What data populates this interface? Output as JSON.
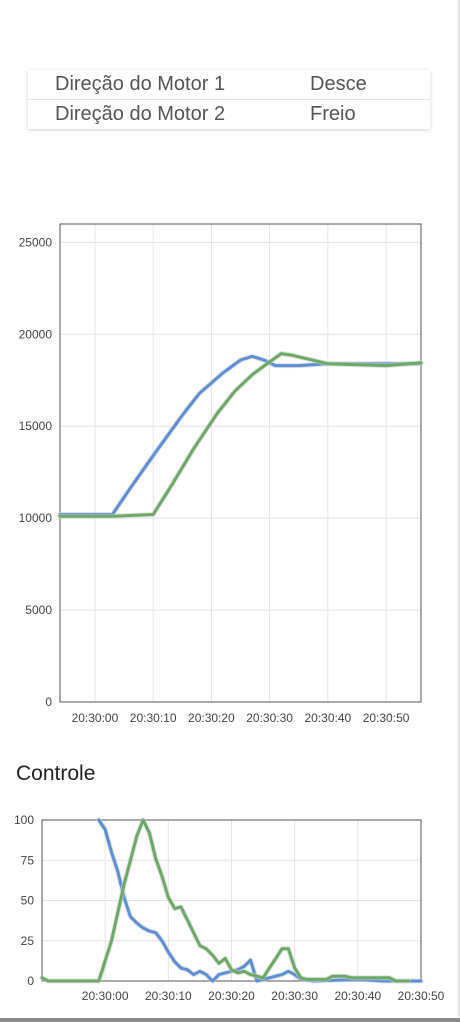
{
  "status_table": {
    "rows": [
      {
        "label": "Direção do Motor 1",
        "value": "Desce"
      },
      {
        "label": "Direção do Motor 2",
        "value": "Freio"
      }
    ]
  },
  "controle_title": "Controle",
  "colors": {
    "blue": "#5b8fd6",
    "green": "#6aaa64"
  },
  "chart_data": [
    {
      "type": "line",
      "title": "",
      "ylim": [
        0,
        26000
      ],
      "yticks": [
        0,
        5000,
        10000,
        15000,
        20000,
        25000
      ],
      "ytick_labels": [
        "0",
        "5000",
        "10000",
        "15000",
        "20000",
        "25000"
      ],
      "xlim": [
        -6,
        56
      ],
      "xticks": [
        0,
        10,
        20,
        30,
        40,
        50
      ],
      "xtick_labels": [
        "20:30:00",
        "20:30:10",
        "20:30:20",
        "20:30:30",
        "20:30:40",
        "20:30:50"
      ],
      "grid": true,
      "series": [
        {
          "color": "#5b8fd6",
          "points": [
            [
              -6,
              10200
            ],
            [
              3,
              10200
            ],
            [
              6,
              11600
            ],
            [
              10,
              13400
            ],
            [
              15,
              15600
            ],
            [
              18,
              16800
            ],
            [
              22,
              17900
            ],
            [
              25,
              18600
            ],
            [
              27,
              18800
            ],
            [
              29,
              18600
            ],
            [
              31,
              18300
            ],
            [
              35,
              18300
            ],
            [
              40,
              18400
            ],
            [
              50,
              18400
            ],
            [
              56,
              18400
            ]
          ]
        },
        {
          "color": "#6aaa64",
          "points": [
            [
              -6,
              10100
            ],
            [
              3,
              10100
            ],
            [
              10,
              10200
            ],
            [
              13,
              11700
            ],
            [
              17,
              13800
            ],
            [
              21,
              15700
            ],
            [
              24,
              16900
            ],
            [
              27,
              17800
            ],
            [
              30,
              18500
            ],
            [
              32,
              18950
            ],
            [
              34,
              18850
            ],
            [
              40,
              18400
            ],
            [
              50,
              18300
            ],
            [
              56,
              18450
            ]
          ]
        }
      ]
    },
    {
      "type": "line",
      "title": "Controle",
      "ylim": [
        0,
        100
      ],
      "yticks": [
        0,
        25,
        50,
        75,
        100
      ],
      "ytick_labels": [
        "0",
        "25",
        "50",
        "75",
        "100"
      ],
      "xlim": [
        -10,
        50
      ],
      "xticks": [
        0,
        10,
        20,
        30,
        40,
        50
      ],
      "xtick_labels": [
        "20:30:00",
        "20:30:10",
        "20:30:20",
        "20:30:30",
        "20:30:40",
        "20:30:50"
      ],
      "grid": true,
      "series": [
        {
          "color": "#5b8fd6",
          "points": [
            [
              -1,
              100
            ],
            [
              0,
              94
            ],
            [
              1,
              80
            ],
            [
              2,
              68
            ],
            [
              3,
              52
            ],
            [
              4,
              40
            ],
            [
              5,
              36
            ],
            [
              6,
              33
            ],
            [
              7,
              31
            ],
            [
              8,
              30
            ],
            [
              9,
              25
            ],
            [
              10,
              18
            ],
            [
              11,
              12
            ],
            [
              12,
              8
            ],
            [
              13,
              7
            ],
            [
              14,
              4
            ],
            [
              15,
              6
            ],
            [
              16,
              4
            ],
            [
              17,
              0
            ],
            [
              18,
              4
            ],
            [
              19,
              5
            ],
            [
              20,
              6
            ],
            [
              21,
              7
            ],
            [
              22,
              9
            ],
            [
              23,
              13
            ],
            [
              24,
              0
            ],
            [
              26,
              2
            ],
            [
              28,
              4
            ],
            [
              29,
              6
            ],
            [
              30,
              4
            ],
            [
              31,
              1
            ],
            [
              33,
              0
            ],
            [
              40,
              1
            ],
            [
              44,
              0
            ],
            [
              50,
              0
            ]
          ]
        },
        {
          "color": "#6aaa64",
          "points": [
            [
              -10,
              2
            ],
            [
              -9,
              0
            ],
            [
              -1,
              0
            ],
            [
              1,
              25
            ],
            [
              3,
              60
            ],
            [
              5,
              90
            ],
            [
              6,
              100
            ],
            [
              7,
              92
            ],
            [
              8,
              76
            ],
            [
              9,
              65
            ],
            [
              10,
              52
            ],
            [
              11,
              45
            ],
            [
              12,
              46
            ],
            [
              13,
              38
            ],
            [
              14,
              30
            ],
            [
              15,
              22
            ],
            [
              16,
              20
            ],
            [
              17,
              16
            ],
            [
              18,
              11
            ],
            [
              19,
              14
            ],
            [
              20,
              7
            ],
            [
              21,
              5
            ],
            [
              22,
              6
            ],
            [
              23,
              4
            ],
            [
              24,
              3
            ],
            [
              25,
              2
            ],
            [
              26,
              8
            ],
            [
              27,
              14
            ],
            [
              28,
              20
            ],
            [
              29,
              20
            ],
            [
              30,
              8
            ],
            [
              31,
              2
            ],
            [
              32,
              1
            ],
            [
              35,
              1
            ],
            [
              36,
              3
            ],
            [
              38,
              3
            ],
            [
              39,
              2
            ],
            [
              40,
              2
            ],
            [
              45,
              2
            ],
            [
              46,
              0
            ],
            [
              48,
              0
            ]
          ]
        }
      ]
    }
  ]
}
